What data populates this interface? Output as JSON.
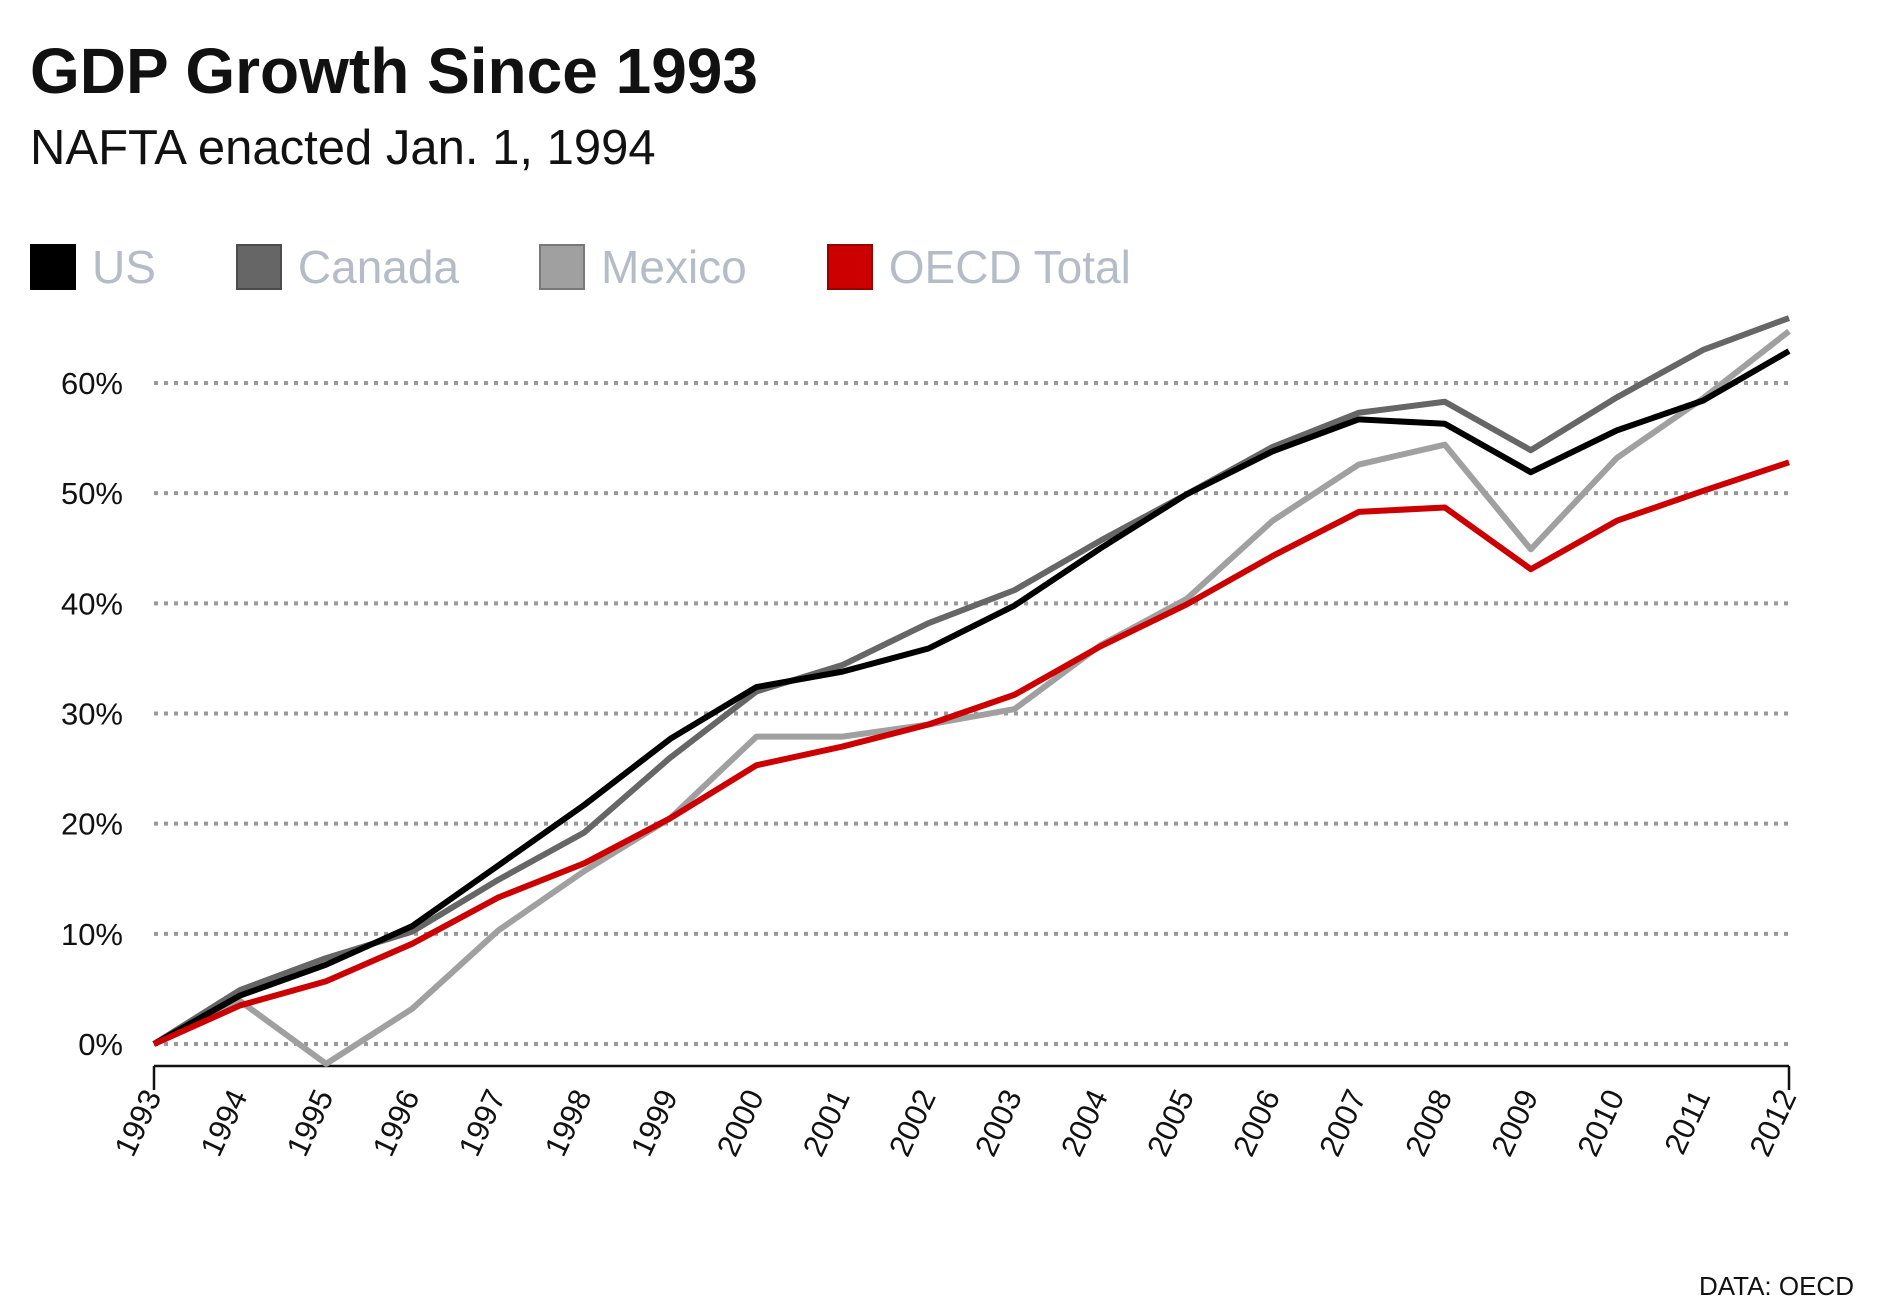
{
  "chart_data": {
    "type": "line",
    "title": "GDP Growth Since 1993",
    "subtitle": "NAFTA enacted Jan. 1, 1994",
    "source": "DATA: OECD",
    "x": [
      1993,
      1994,
      1995,
      1996,
      1997,
      1998,
      1999,
      2000,
      2001,
      2002,
      2003,
      2004,
      2005,
      2006,
      2007,
      2008,
      2009,
      2010,
      2011,
      2012
    ],
    "x_tick_labels": [
      "1993",
      "1994",
      "1995",
      "1996",
      "1997",
      "1998",
      "1999",
      "2000",
      "2001",
      "2002",
      "2003",
      "2004",
      "2005",
      "2006",
      "2007",
      "2008",
      "2009",
      "2010",
      "2011",
      "2012"
    ],
    "y_ticks": [
      0,
      10,
      20,
      30,
      40,
      50,
      60
    ],
    "y_tick_labels": [
      "0%",
      "10%",
      "20%",
      "30%",
      "40%",
      "50%",
      "60%"
    ],
    "ylim": [
      -2,
      67
    ],
    "grid": "horizontal dotted",
    "legend_position": "top-left",
    "series": [
      {
        "name": "US",
        "color": "#000000",
        "values": [
          0,
          4.4,
          7.2,
          10.7,
          16.2,
          21.7,
          27.7,
          32.4,
          33.8,
          35.9,
          39.8,
          45.0,
          49.9,
          53.8,
          56.7,
          56.3,
          51.9,
          55.7,
          58.4,
          62.9
        ]
      },
      {
        "name": "Canada",
        "color": "#666666",
        "values": [
          0,
          4.9,
          7.8,
          10.2,
          14.9,
          19.2,
          26.0,
          32.0,
          34.4,
          38.2,
          41.2,
          45.7,
          49.9,
          54.2,
          57.3,
          58.3,
          53.9,
          58.7,
          63.0,
          65.9
        ]
      },
      {
        "name": "Mexico",
        "color": "#a0a0a0",
        "values": [
          0,
          3.9,
          -1.8,
          3.2,
          10.3,
          15.7,
          20.5,
          27.9,
          27.9,
          29.0,
          30.4,
          36.2,
          40.4,
          47.5,
          52.6,
          54.4,
          44.9,
          53.2,
          58.6,
          64.7
        ]
      },
      {
        "name": "OECD Total",
        "color": "#cc0000",
        "values": [
          0,
          3.5,
          5.7,
          9.1,
          13.3,
          16.4,
          20.5,
          25.3,
          27.0,
          29.0,
          31.7,
          36.1,
          39.9,
          44.3,
          48.3,
          48.7,
          43.1,
          47.5,
          50.2,
          52.8
        ]
      }
    ]
  }
}
